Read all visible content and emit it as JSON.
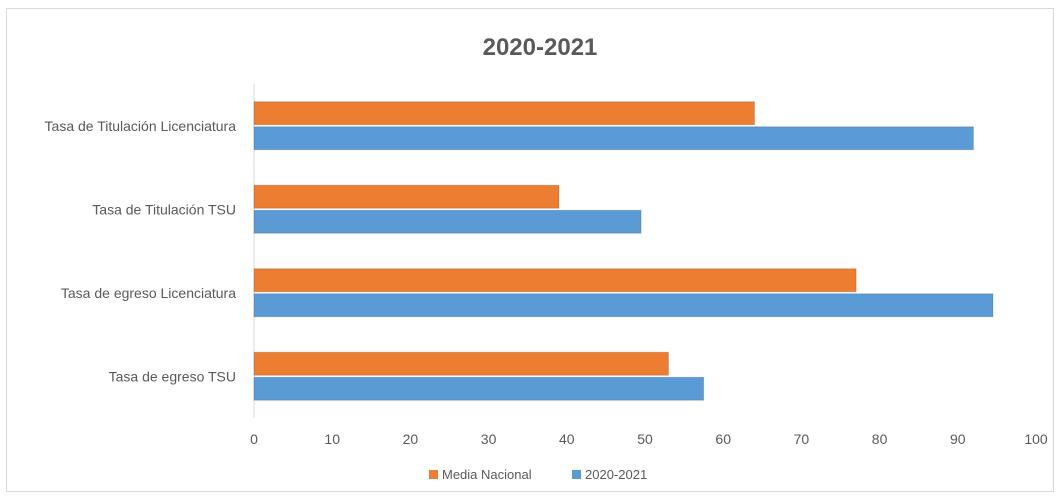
{
  "chart_data": {
    "type": "bar",
    "orientation": "horizontal",
    "title": "2020-2021",
    "categories": [
      "Tasa de Titulación Licenciatura",
      "Tasa de Titulación TSU",
      "Tasa de egreso Licenciatura",
      "Tasa de egreso TSU"
    ],
    "series": [
      {
        "name": "Media Nacional",
        "color": "#ED7D31",
        "values": [
          64,
          39,
          77,
          53
        ]
      },
      {
        "name": "2020-2021",
        "color": "#5B9BD5",
        "values": [
          92,
          49.5,
          94.5,
          57.5
        ]
      }
    ],
    "xlim": [
      0,
      100
    ],
    "xticks": [
      "0",
      "10",
      "20",
      "30",
      "40",
      "50",
      "60",
      "70",
      "80",
      "90",
      "100"
    ],
    "grid": false,
    "legend_position": "bottom"
  }
}
